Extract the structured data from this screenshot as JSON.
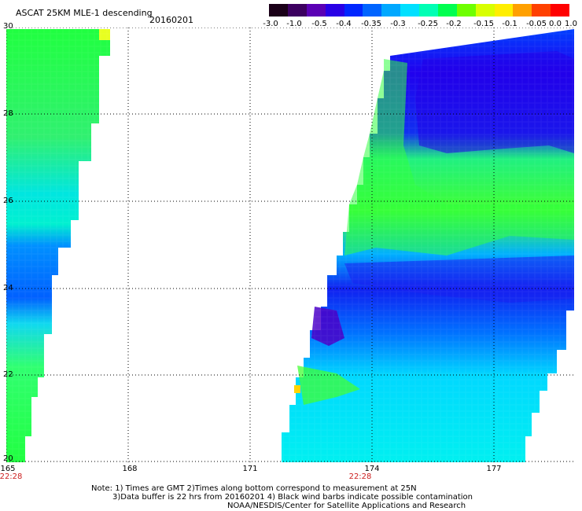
{
  "header": {
    "title": "ASCAT 25KM MLE-1 descending",
    "date": "20160201"
  },
  "colorbar": {
    "labels": [
      "-3.0",
      "-1.0",
      "-0.5",
      "-0.4",
      "-0.35",
      "-0.3",
      "-0.25",
      "-0.2",
      "-0.15",
      "-0.1",
      "-0.05",
      "0.0",
      "1.0"
    ],
    "colors": [
      "#1a0018",
      "#3c0060",
      "#5a00b4",
      "#2800e6",
      "#0026ff",
      "#0064ff",
      "#00a8ff",
      "#00e0ff",
      "#00ffb4",
      "#00ff50",
      "#6eff00",
      "#d8ff00",
      "#ffee00",
      "#ffa000",
      "#ff4000",
      "#ff0000"
    ]
  },
  "map": {
    "y_ticks": [
      "30",
      "28",
      "26",
      "24",
      "22",
      "20"
    ],
    "x_ticks": [
      "165",
      "168",
      "171",
      "174",
      "177"
    ],
    "times": [
      "22:28",
      "22:28"
    ]
  },
  "notes": {
    "line1": "Note: 1) Times are GMT 2)Times along bottom correspond to measurement at 25N",
    "line2": "3)Data buffer is 22 hrs from 20160201 4) Black wind barbs indicate possible contamination",
    "line3": "NOAA/NESDIS/Center for Satellite Applications and Research"
  }
}
